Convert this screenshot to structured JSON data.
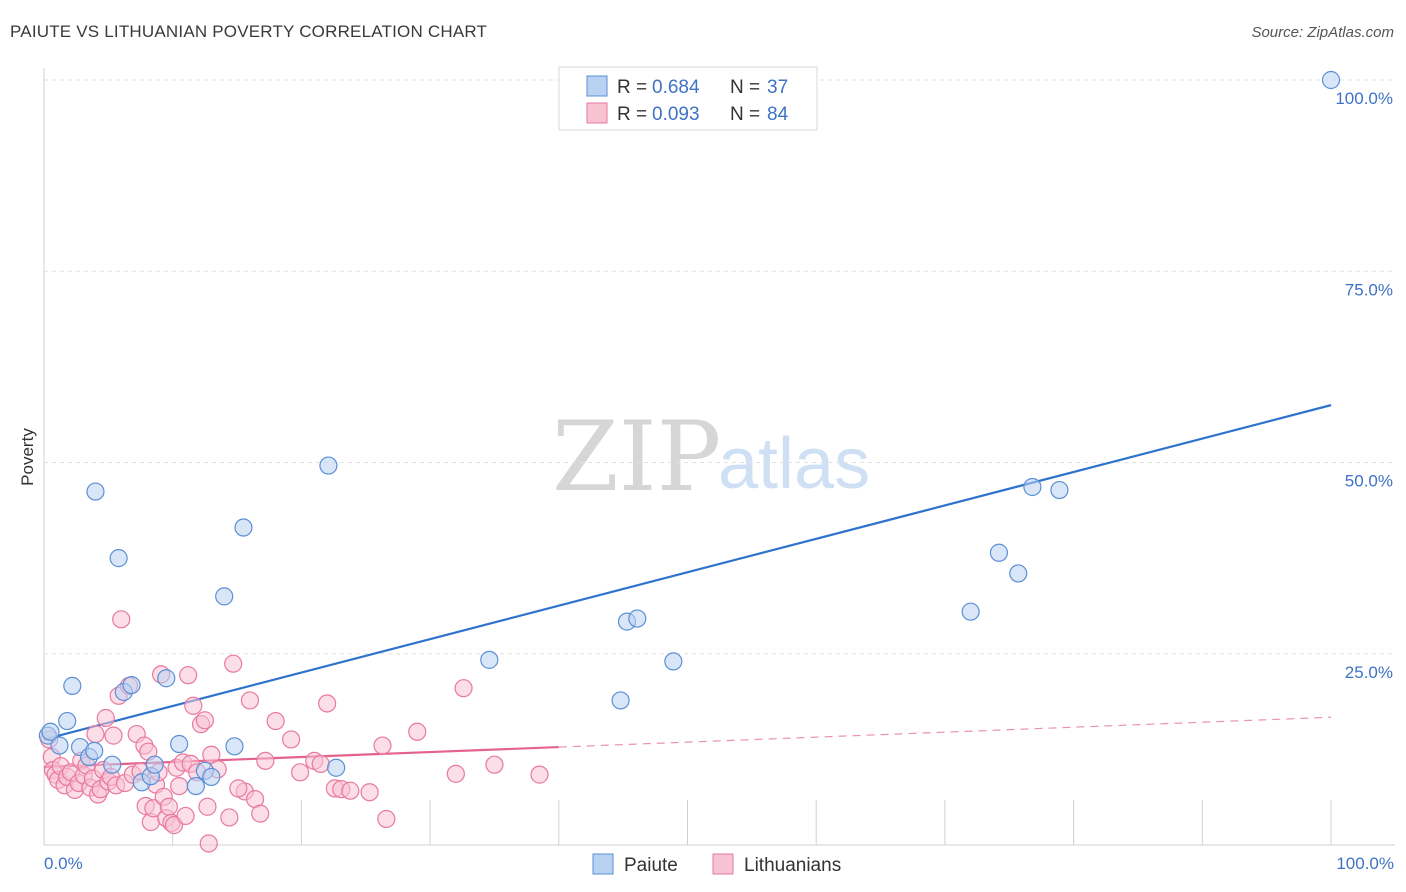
{
  "header": {
    "title": "PAIUTE VS LITHUANIAN POVERTY CORRELATION CHART",
    "source": "Source: ZipAtlas.com"
  },
  "watermark": {
    "zip": "ZIP",
    "atlas": "atlas"
  },
  "colors": {
    "paiute_fill": "#b9d2f2",
    "paiute_stroke": "#5b8fd6",
    "paiute_line": "#2f73cc",
    "lith_fill": "#f7c3d3",
    "lith_stroke": "#e8799f",
    "lith_line": "#e4638e",
    "tick_text": "#3e73c4",
    "grid": "#e2e2e2"
  },
  "legend": {
    "r_label": "R =",
    "n_label": "N =",
    "rows": [
      {
        "series": "Paiute",
        "r": "0.684",
        "n": "37"
      },
      {
        "series": "Lithuanians",
        "r": "0.093",
        "n": "84"
      }
    ]
  },
  "chart_data": {
    "type": "scatter",
    "title": "PAIUTE VS LITHUANIAN POVERTY CORRELATION CHART",
    "xlabel": "",
    "ylabel": "Poverty",
    "xlim": [
      0,
      100
    ],
    "ylim": [
      0,
      100
    ],
    "x_tick_labels": [
      "0.0%",
      "100.0%"
    ],
    "y_ticks": [
      25,
      50,
      75,
      100
    ],
    "y_tick_labels": [
      "25.0%",
      "50.0%",
      "75.0%",
      "100.0%"
    ],
    "grid": true,
    "legend_position": "top-center",
    "series": [
      {
        "name": "Paiute",
        "r": 0.684,
        "n": 37,
        "trend": {
          "x0": 0,
          "y0": 13.8,
          "x1": 100,
          "y1": 57.5,
          "solid_to": 100
        },
        "points": [
          [
            0.3,
            14.3
          ],
          [
            0.5,
            14.8
          ],
          [
            1.2,
            13.0
          ],
          [
            1.8,
            16.2
          ],
          [
            2.2,
            20.8
          ],
          [
            2.8,
            12.8
          ],
          [
            3.5,
            11.5
          ],
          [
            3.9,
            12.3
          ],
          [
            4.0,
            46.2
          ],
          [
            5.3,
            10.5
          ],
          [
            5.8,
            37.5
          ],
          [
            6.2,
            20.0
          ],
          [
            6.8,
            20.9
          ],
          [
            7.6,
            8.2
          ],
          [
            8.3,
            9.0
          ],
          [
            8.6,
            10.5
          ],
          [
            9.5,
            21.8
          ],
          [
            10.5,
            13.2
          ],
          [
            11.8,
            7.7
          ],
          [
            12.5,
            9.7
          ],
          [
            13.0,
            8.9
          ],
          [
            14.0,
            32.5
          ],
          [
            14.8,
            12.9
          ],
          [
            15.5,
            41.5
          ],
          [
            22.1,
            49.6
          ],
          [
            22.7,
            10.1
          ],
          [
            34.6,
            24.2
          ],
          [
            44.8,
            18.9
          ],
          [
            45.3,
            29.2
          ],
          [
            46.1,
            29.6
          ],
          [
            48.9,
            24.0
          ],
          [
            72.0,
            30.5
          ],
          [
            74.2,
            38.2
          ],
          [
            75.7,
            35.5
          ],
          [
            76.8,
            46.8
          ],
          [
            78.9,
            46.4
          ],
          [
            100.0,
            100.0
          ]
        ]
      },
      {
        "name": "Lithuanians",
        "r": 0.093,
        "n": 84,
        "trend": {
          "x0": 0,
          "y0": 10.2,
          "x1": 100,
          "y1": 16.7,
          "solid_to": 40
        },
        "points": [
          [
            0.4,
            13.8
          ],
          [
            0.6,
            11.5
          ],
          [
            0.7,
            9.8
          ],
          [
            0.9,
            9.2
          ],
          [
            1.1,
            8.5
          ],
          [
            1.3,
            10.3
          ],
          [
            1.6,
            7.8
          ],
          [
            1.8,
            8.9
          ],
          [
            2.1,
            9.5
          ],
          [
            2.4,
            7.2
          ],
          [
            2.7,
            8.1
          ],
          [
            2.9,
            11.0
          ],
          [
            3.1,
            9.1
          ],
          [
            3.3,
            10.4
          ],
          [
            3.6,
            7.5
          ],
          [
            3.8,
            8.7
          ],
          [
            4.0,
            14.5
          ],
          [
            4.2,
            6.6
          ],
          [
            4.4,
            7.3
          ],
          [
            4.6,
            9.8
          ],
          [
            4.8,
            16.6
          ],
          [
            5.0,
            8.3
          ],
          [
            5.2,
            8.9
          ],
          [
            5.4,
            14.3
          ],
          [
            5.6,
            7.8
          ],
          [
            5.8,
            19.5
          ],
          [
            6.0,
            29.5
          ],
          [
            6.3,
            8.1
          ],
          [
            6.6,
            20.8
          ],
          [
            6.9,
            9.2
          ],
          [
            7.2,
            14.5
          ],
          [
            7.5,
            9.6
          ],
          [
            7.8,
            13.0
          ],
          [
            7.9,
            5.1
          ],
          [
            8.1,
            12.2
          ],
          [
            8.3,
            3.0
          ],
          [
            8.5,
            4.8
          ],
          [
            8.7,
            7.9
          ],
          [
            8.9,
            9.5
          ],
          [
            9.1,
            22.3
          ],
          [
            9.3,
            6.3
          ],
          [
            9.5,
            3.5
          ],
          [
            9.7,
            5.0
          ],
          [
            9.9,
            2.9
          ],
          [
            10.1,
            2.6
          ],
          [
            10.3,
            10.1
          ],
          [
            10.5,
            7.7
          ],
          [
            10.8,
            10.8
          ],
          [
            11.0,
            3.8
          ],
          [
            11.2,
            22.2
          ],
          [
            11.4,
            10.6
          ],
          [
            11.6,
            18.2
          ],
          [
            11.9,
            9.5
          ],
          [
            12.2,
            15.8
          ],
          [
            12.5,
            16.3
          ],
          [
            12.7,
            5.0
          ],
          [
            12.8,
            0.2
          ],
          [
            13.0,
            11.8
          ],
          [
            13.5,
            9.9
          ],
          [
            14.4,
            3.6
          ],
          [
            14.7,
            23.7
          ],
          [
            15.6,
            7.0
          ],
          [
            16.0,
            18.9
          ],
          [
            16.4,
            6.0
          ],
          [
            16.8,
            4.1
          ],
          [
            17.2,
            11.0
          ],
          [
            18.0,
            16.2
          ],
          [
            19.2,
            13.8
          ],
          [
            19.9,
            9.5
          ],
          [
            21.0,
            11.0
          ],
          [
            21.5,
            10.6
          ],
          [
            22.0,
            18.5
          ],
          [
            22.6,
            7.4
          ],
          [
            23.1,
            7.3
          ],
          [
            23.8,
            7.1
          ],
          [
            25.3,
            6.9
          ],
          [
            26.3,
            13.0
          ],
          [
            26.6,
            3.4
          ],
          [
            29.0,
            14.8
          ],
          [
            32.0,
            9.3
          ],
          [
            32.6,
            20.5
          ],
          [
            35.0,
            10.5
          ],
          [
            38.5,
            9.2
          ],
          [
            15.1,
            7.4
          ]
        ]
      }
    ]
  }
}
